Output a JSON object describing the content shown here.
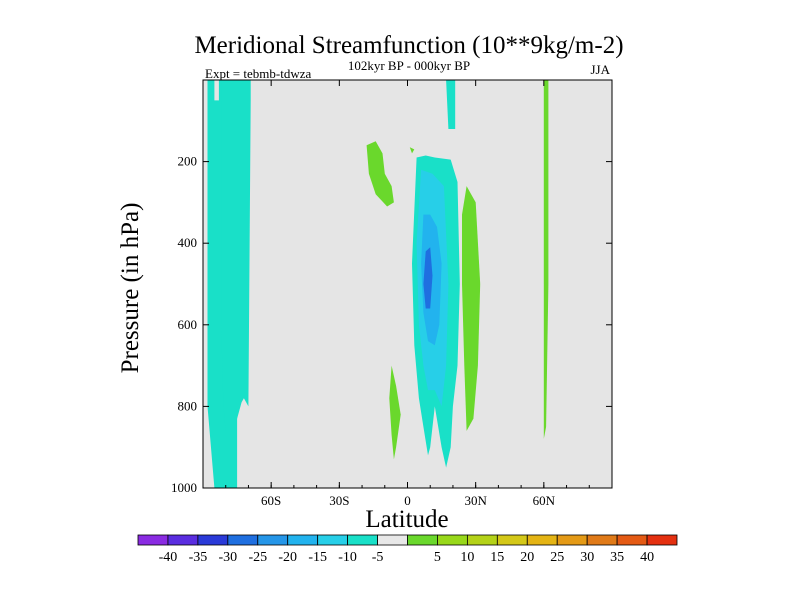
{
  "chart_data": {
    "type": "heatmap",
    "title": "Meridional Streamfunction (10**9kg/m-2)",
    "subtitle": "102kyr BP - 000kyr BP",
    "left_label": "Expt = tebmb-tdwza",
    "right_label": "JJA",
    "xlabel": "Latitude",
    "ylabel": "Pressure (in hPa)",
    "xlim": [
      -90,
      90
    ],
    "ylim": [
      1000,
      0
    ],
    "x_ticks": [
      {
        "value": -60,
        "label": "60S"
      },
      {
        "value": -30,
        "label": "30S"
      },
      {
        "value": 0,
        "label": "0"
      },
      {
        "value": 30,
        "label": "30N"
      },
      {
        "value": 60,
        "label": "60N"
      }
    ],
    "y_ticks": [
      {
        "value": 200,
        "label": "200"
      },
      {
        "value": 400,
        "label": "400"
      },
      {
        "value": 600,
        "label": "600"
      },
      {
        "value": 800,
        "label": "800"
      },
      {
        "value": 1000,
        "label": "1000"
      }
    ],
    "colorbar": {
      "colors": [
        "#8a2be2",
        "#5a2de0",
        "#2a3ad8",
        "#1f6fe0",
        "#2596e8",
        "#22b3ee",
        "#27cfe8",
        "#19e0c8",
        "#e8e8e8",
        "#6ad82c",
        "#98d81a",
        "#b4d218",
        "#d4c818",
        "#e4b414",
        "#e49a16",
        "#e07a18",
        "#e45a14",
        "#e43010"
      ],
      "labels": [
        "-40",
        "-35",
        "-30",
        "-25",
        "-20",
        "-15",
        "-10",
        "-5",
        "5",
        "10",
        "15",
        "20",
        "25",
        "30",
        "35",
        "40"
      ]
    },
    "background_color": "#e5e5e5",
    "regions": [
      {
        "name": "band-southern-high-lat",
        "value_range": "-10 to -5",
        "color": "#19e0c8",
        "points": [
          [
            -88,
            0
          ],
          [
            -85,
            0
          ],
          [
            -85,
            50
          ],
          [
            -83,
            50
          ],
          [
            -83,
            0
          ],
          [
            -75,
            0
          ],
          [
            -75,
            1000
          ],
          [
            -85,
            1000
          ],
          [
            -88,
            800
          ]
        ]
      },
      {
        "name": "band-southern-mid-lat",
        "value_range": "-10 to -5",
        "color": "#19e0c8",
        "points": [
          [
            -82,
            0
          ],
          [
            -69,
            0
          ],
          [
            -69,
            50
          ],
          [
            -70,
            800
          ],
          [
            -72,
            780
          ],
          [
            -73,
            790
          ],
          [
            -75,
            830
          ],
          [
            -78,
            870
          ],
          [
            -80,
            860
          ],
          [
            -81,
            800
          ],
          [
            -82,
            600
          ]
        ]
      },
      {
        "name": "tropical-cell-outer",
        "value_range": "-10 to -5",
        "color": "#19e0c8",
        "points": [
          [
            4,
            190
          ],
          [
            8,
            185
          ],
          [
            12,
            190
          ],
          [
            19,
            195
          ],
          [
            22,
            250
          ],
          [
            23,
            500
          ],
          [
            22,
            700
          ],
          [
            20,
            800
          ],
          [
            19,
            900
          ],
          [
            17,
            950
          ],
          [
            15,
            900
          ],
          [
            12,
            800
          ],
          [
            10,
            900
          ],
          [
            9,
            920
          ],
          [
            7,
            850
          ],
          [
            5,
            780
          ],
          [
            3,
            650
          ],
          [
            2,
            450
          ]
        ]
      },
      {
        "name": "tropical-cell-mid",
        "value_range": "-15 to -10",
        "color": "#27cfe8",
        "points": [
          [
            6,
            220
          ],
          [
            11,
            230
          ],
          [
            16,
            260
          ],
          [
            18,
            500
          ],
          [
            17,
            700
          ],
          [
            15,
            800
          ],
          [
            12,
            760
          ],
          [
            9,
            760
          ],
          [
            7,
            700
          ],
          [
            5,
            600
          ],
          [
            4,
            400
          ]
        ]
      },
      {
        "name": "tropical-cell-inner",
        "value_range": "-20 to -15",
        "color": "#22b3ee",
        "points": [
          [
            7,
            330
          ],
          [
            10,
            330
          ],
          [
            13,
            360
          ],
          [
            15,
            450
          ],
          [
            14,
            600
          ],
          [
            12,
            650
          ],
          [
            9,
            640
          ],
          [
            7,
            570
          ],
          [
            6,
            450
          ]
        ]
      },
      {
        "name": "tropical-cell-core",
        "value_range": "-25 to -20",
        "color": "#1f6fe0",
        "points": [
          [
            8,
            420
          ],
          [
            10,
            410
          ],
          [
            11,
            480
          ],
          [
            10,
            560
          ],
          [
            8,
            560
          ],
          [
            7,
            500
          ]
        ]
      },
      {
        "name": "subtropical-nh-upper-jet",
        "value_range": "-10 to -5",
        "color": "#19e0c8",
        "points": [
          [
            17,
            0
          ],
          [
            21,
            0
          ],
          [
            21,
            120
          ],
          [
            18,
            120
          ]
        ]
      },
      {
        "name": "positive-upper-sh",
        "value_range": "5 to 10",
        "color": "#6ad82c",
        "points": [
          [
            -18,
            160
          ],
          [
            -14,
            150
          ],
          [
            -11,
            180
          ],
          [
            -10,
            230
          ],
          [
            -7,
            260
          ],
          [
            -6,
            300
          ],
          [
            -9,
            310
          ],
          [
            -14,
            280
          ],
          [
            -17,
            230
          ]
        ]
      },
      {
        "name": "positive-dot",
        "value_range": "5 to 10",
        "color": "#6ad82c",
        "points": [
          [
            1,
            165
          ],
          [
            3,
            170
          ],
          [
            2,
            180
          ]
        ]
      },
      {
        "name": "positive-nh-tropics",
        "value_range": "5 to 10",
        "color": "#6ad82c",
        "points": [
          [
            26,
            260
          ],
          [
            30,
            300
          ],
          [
            32,
            500
          ],
          [
            31,
            700
          ],
          [
            29,
            830
          ],
          [
            26,
            860
          ],
          [
            25,
            700
          ],
          [
            24,
            500
          ],
          [
            24,
            330
          ]
        ]
      },
      {
        "name": "positive-sh-lower",
        "value_range": "5 to 10",
        "color": "#6ad82c",
        "points": [
          [
            -7,
            700
          ],
          [
            -5,
            750
          ],
          [
            -3,
            820
          ],
          [
            -5,
            900
          ],
          [
            -6,
            930
          ],
          [
            -7,
            870
          ],
          [
            -8,
            780
          ]
        ]
      },
      {
        "name": "positive-nh-highlat",
        "value_range": "5 to 10",
        "color": "#6ad82c",
        "points": [
          [
            60,
            0
          ],
          [
            62,
            0
          ],
          [
            62,
            500
          ],
          [
            61,
            850
          ],
          [
            60,
            880
          ],
          [
            60,
            500
          ]
        ]
      }
    ]
  }
}
